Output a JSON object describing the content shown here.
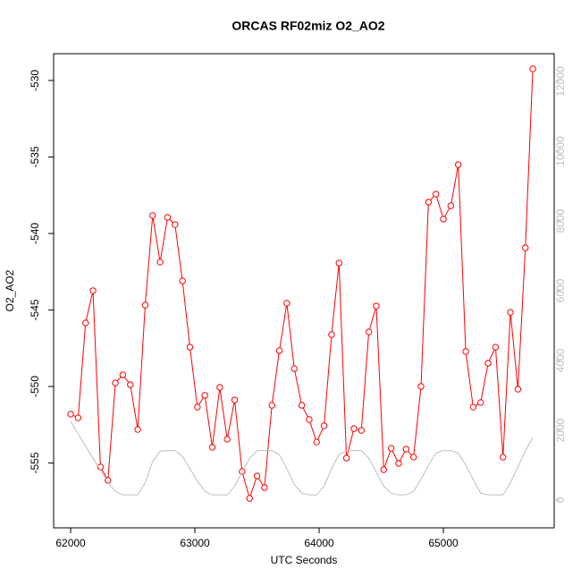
{
  "chart_data": {
    "type": "line",
    "title": "ORCAS RF02miz O2_AO2",
    "x_label": "UTC Seconds",
    "y_label": "O2_AO2",
    "x": [
      62000,
      62060,
      62120,
      62180,
      62240,
      62300,
      62360,
      62420,
      62480,
      62540,
      62600,
      62660,
      62720,
      62780,
      62840,
      62900,
      62960,
      63020,
      63080,
      63140,
      63200,
      63260,
      63320,
      63380,
      63440,
      63500,
      63560,
      63620,
      63680,
      63740,
      63800,
      63860,
      63920,
      63980,
      64040,
      64100,
      64160,
      64220,
      64280,
      64340,
      64400,
      64460,
      64520,
      64580,
      64640,
      64700,
      64760,
      64820,
      64880,
      64940,
      65000,
      65060,
      65120,
      65180,
      65240,
      65300,
      65360,
      65420,
      65480,
      65540,
      65600,
      65660,
      65720
    ],
    "series": [
      {
        "color": "#ff0000",
        "values": [
          -551.81,
          -552.05,
          -545.85,
          -543.74,
          -555.26,
          -556.14,
          -549.77,
          -549.24,
          -549.88,
          -552.81,
          -544.68,
          -538.83,
          -541.87,
          -538.95,
          -539.42,
          -543.1,
          -547.43,
          -551.35,
          -550.58,
          -553.98,
          -550.06,
          -553.45,
          -550.88,
          -555.56,
          -557.31,
          -555.85,
          -556.61,
          -551.23,
          -547.66,
          -544.56,
          -548.83,
          -551.23,
          -552.16,
          -553.63,
          -552.57,
          -546.61,
          -541.93,
          -554.68,
          -552.75,
          -552.87,
          -546.43,
          -544.74,
          -555.44,
          -554.04,
          -555.03,
          -554.09,
          -554.62,
          -550.0,
          -537.95,
          -537.43,
          -539.06,
          -538.19,
          -535.5,
          -547.72,
          -551.35,
          -551.05,
          -548.48,
          -547.43,
          -554.62,
          -545.15,
          -550.18,
          -540.94,
          -529.24
        ]
      },
      {
        "color": "#bebebe",
        "axis": "y2",
        "values": [
          2250,
          1900,
          1550,
          1200,
          850,
          500,
          250,
          150,
          150,
          150,
          500,
          1100,
          1400,
          1420,
          1420,
          1250,
          900,
          550,
          250,
          150,
          150,
          150,
          400,
          800,
          1200,
          1420,
          1420,
          1420,
          1300,
          900,
          450,
          200,
          150,
          150,
          400,
          900,
          1300,
          1420,
          1420,
          1420,
          1200,
          800,
          400,
          200,
          150,
          150,
          250,
          600,
          1000,
          1350,
          1420,
          1420,
          1350,
          1000,
          600,
          200,
          150,
          150,
          150,
          500,
          950,
          1400,
          1800
        ]
      }
    ],
    "xlim": [
      61863,
      65892
    ],
    "xticks": [
      62000,
      63000,
      64000,
      65000
    ],
    "ylim": [
      -559.24,
      -528.25
    ],
    "yticks": [
      -555,
      -550,
      -545,
      -540,
      -535,
      -530
    ],
    "y2lim": [
      -795,
      12795
    ],
    "y2ticks": [
      0,
      2000,
      4000,
      6000,
      8000,
      10000,
      12000
    ]
  }
}
